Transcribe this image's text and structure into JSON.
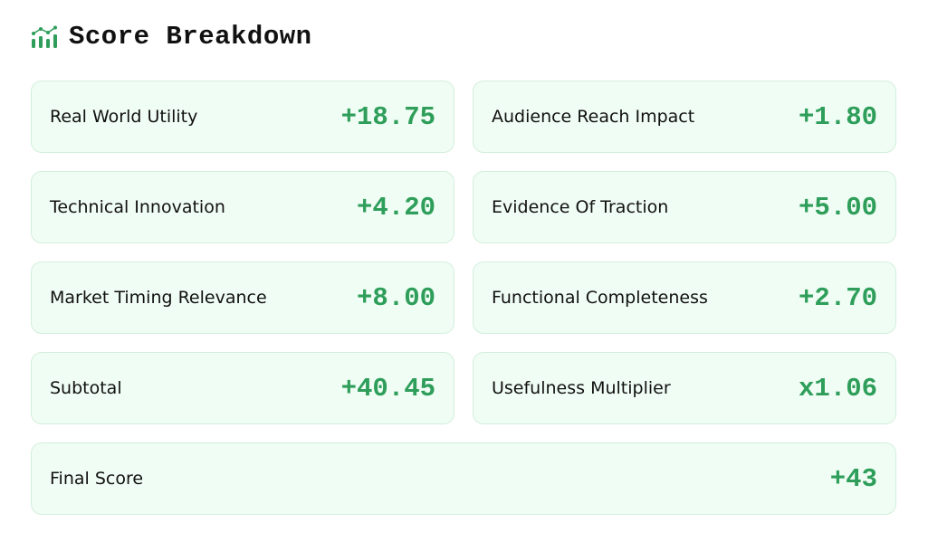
{
  "header": {
    "title": "Score Breakdown",
    "icon": "chart-icon"
  },
  "accent": "#2e9e5a",
  "items": [
    {
      "label": "Real World Utility",
      "value": "+18.75"
    },
    {
      "label": "Audience Reach Impact",
      "value": "+1.80"
    },
    {
      "label": "Technical Innovation",
      "value": "+4.20"
    },
    {
      "label": "Evidence Of Traction",
      "value": "+5.00"
    },
    {
      "label": "Market Timing Relevance",
      "value": "+8.00"
    },
    {
      "label": "Functional Completeness",
      "value": "+2.70"
    },
    {
      "label": "Subtotal",
      "value": "+40.45"
    },
    {
      "label": "Usefulness Multiplier",
      "value": "x1.06"
    },
    {
      "label": "Final Score",
      "value": "+43"
    }
  ]
}
